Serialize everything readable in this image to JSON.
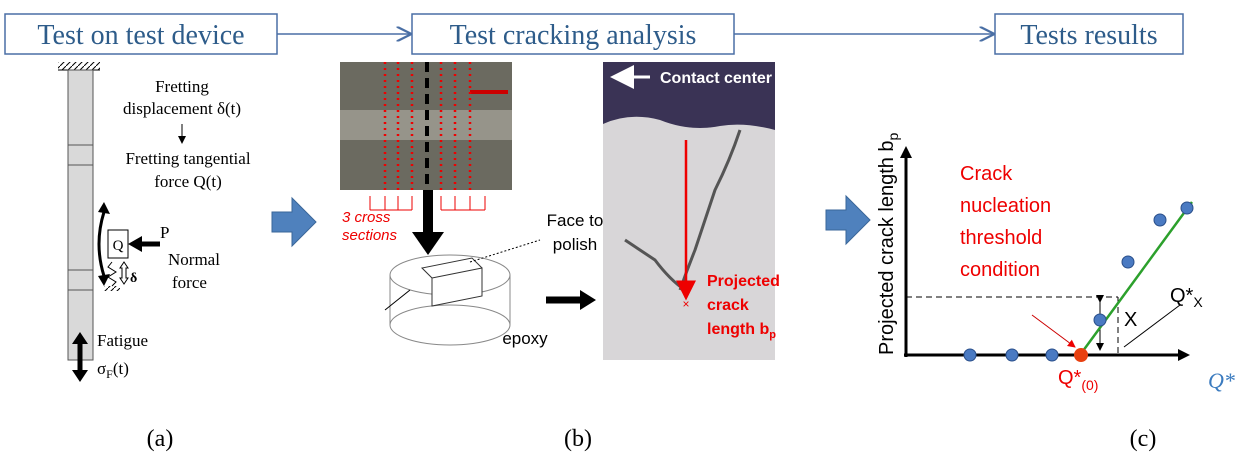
{
  "header": {
    "steps": [
      "Test on test device",
      "Test cracking analysis",
      "Tests results"
    ]
  },
  "panel_a": {
    "label": "(a)",
    "displacement": [
      "Fretting",
      "displacement δ(t)"
    ],
    "tangential": [
      "Fretting tangential",
      "force Q(t)"
    ],
    "q_box": "Q",
    "p": "P",
    "normal": [
      "Normal",
      "force"
    ],
    "delta": "δ",
    "fatigue": "Fatigue",
    "sigma": {
      "text": "σ",
      "sub": "F",
      "tail": "(t)"
    }
  },
  "panel_b": {
    "label": "(b)",
    "cross_sections": [
      "3 cross",
      "sections"
    ],
    "face": [
      "Face to",
      "polish"
    ],
    "epoxy": "epoxy",
    "contact_center": "Contact center",
    "crack_length": {
      "lines": [
        "Projected",
        "crack",
        "length b"
      ],
      "sub": "p"
    }
  },
  "panel_c": {
    "label": "(c)",
    "y_axis": {
      "text": "Projected crack length b",
      "sub": "p"
    },
    "threshold": [
      "Crack",
      "nucleation",
      "threshold",
      "condition"
    ],
    "x_mark": "X",
    "q_x": {
      "text": "Q*",
      "sub": "X"
    },
    "q_0": {
      "text": "Q*",
      "sub": "(0)"
    },
    "x_axis": "Q*"
  }
}
